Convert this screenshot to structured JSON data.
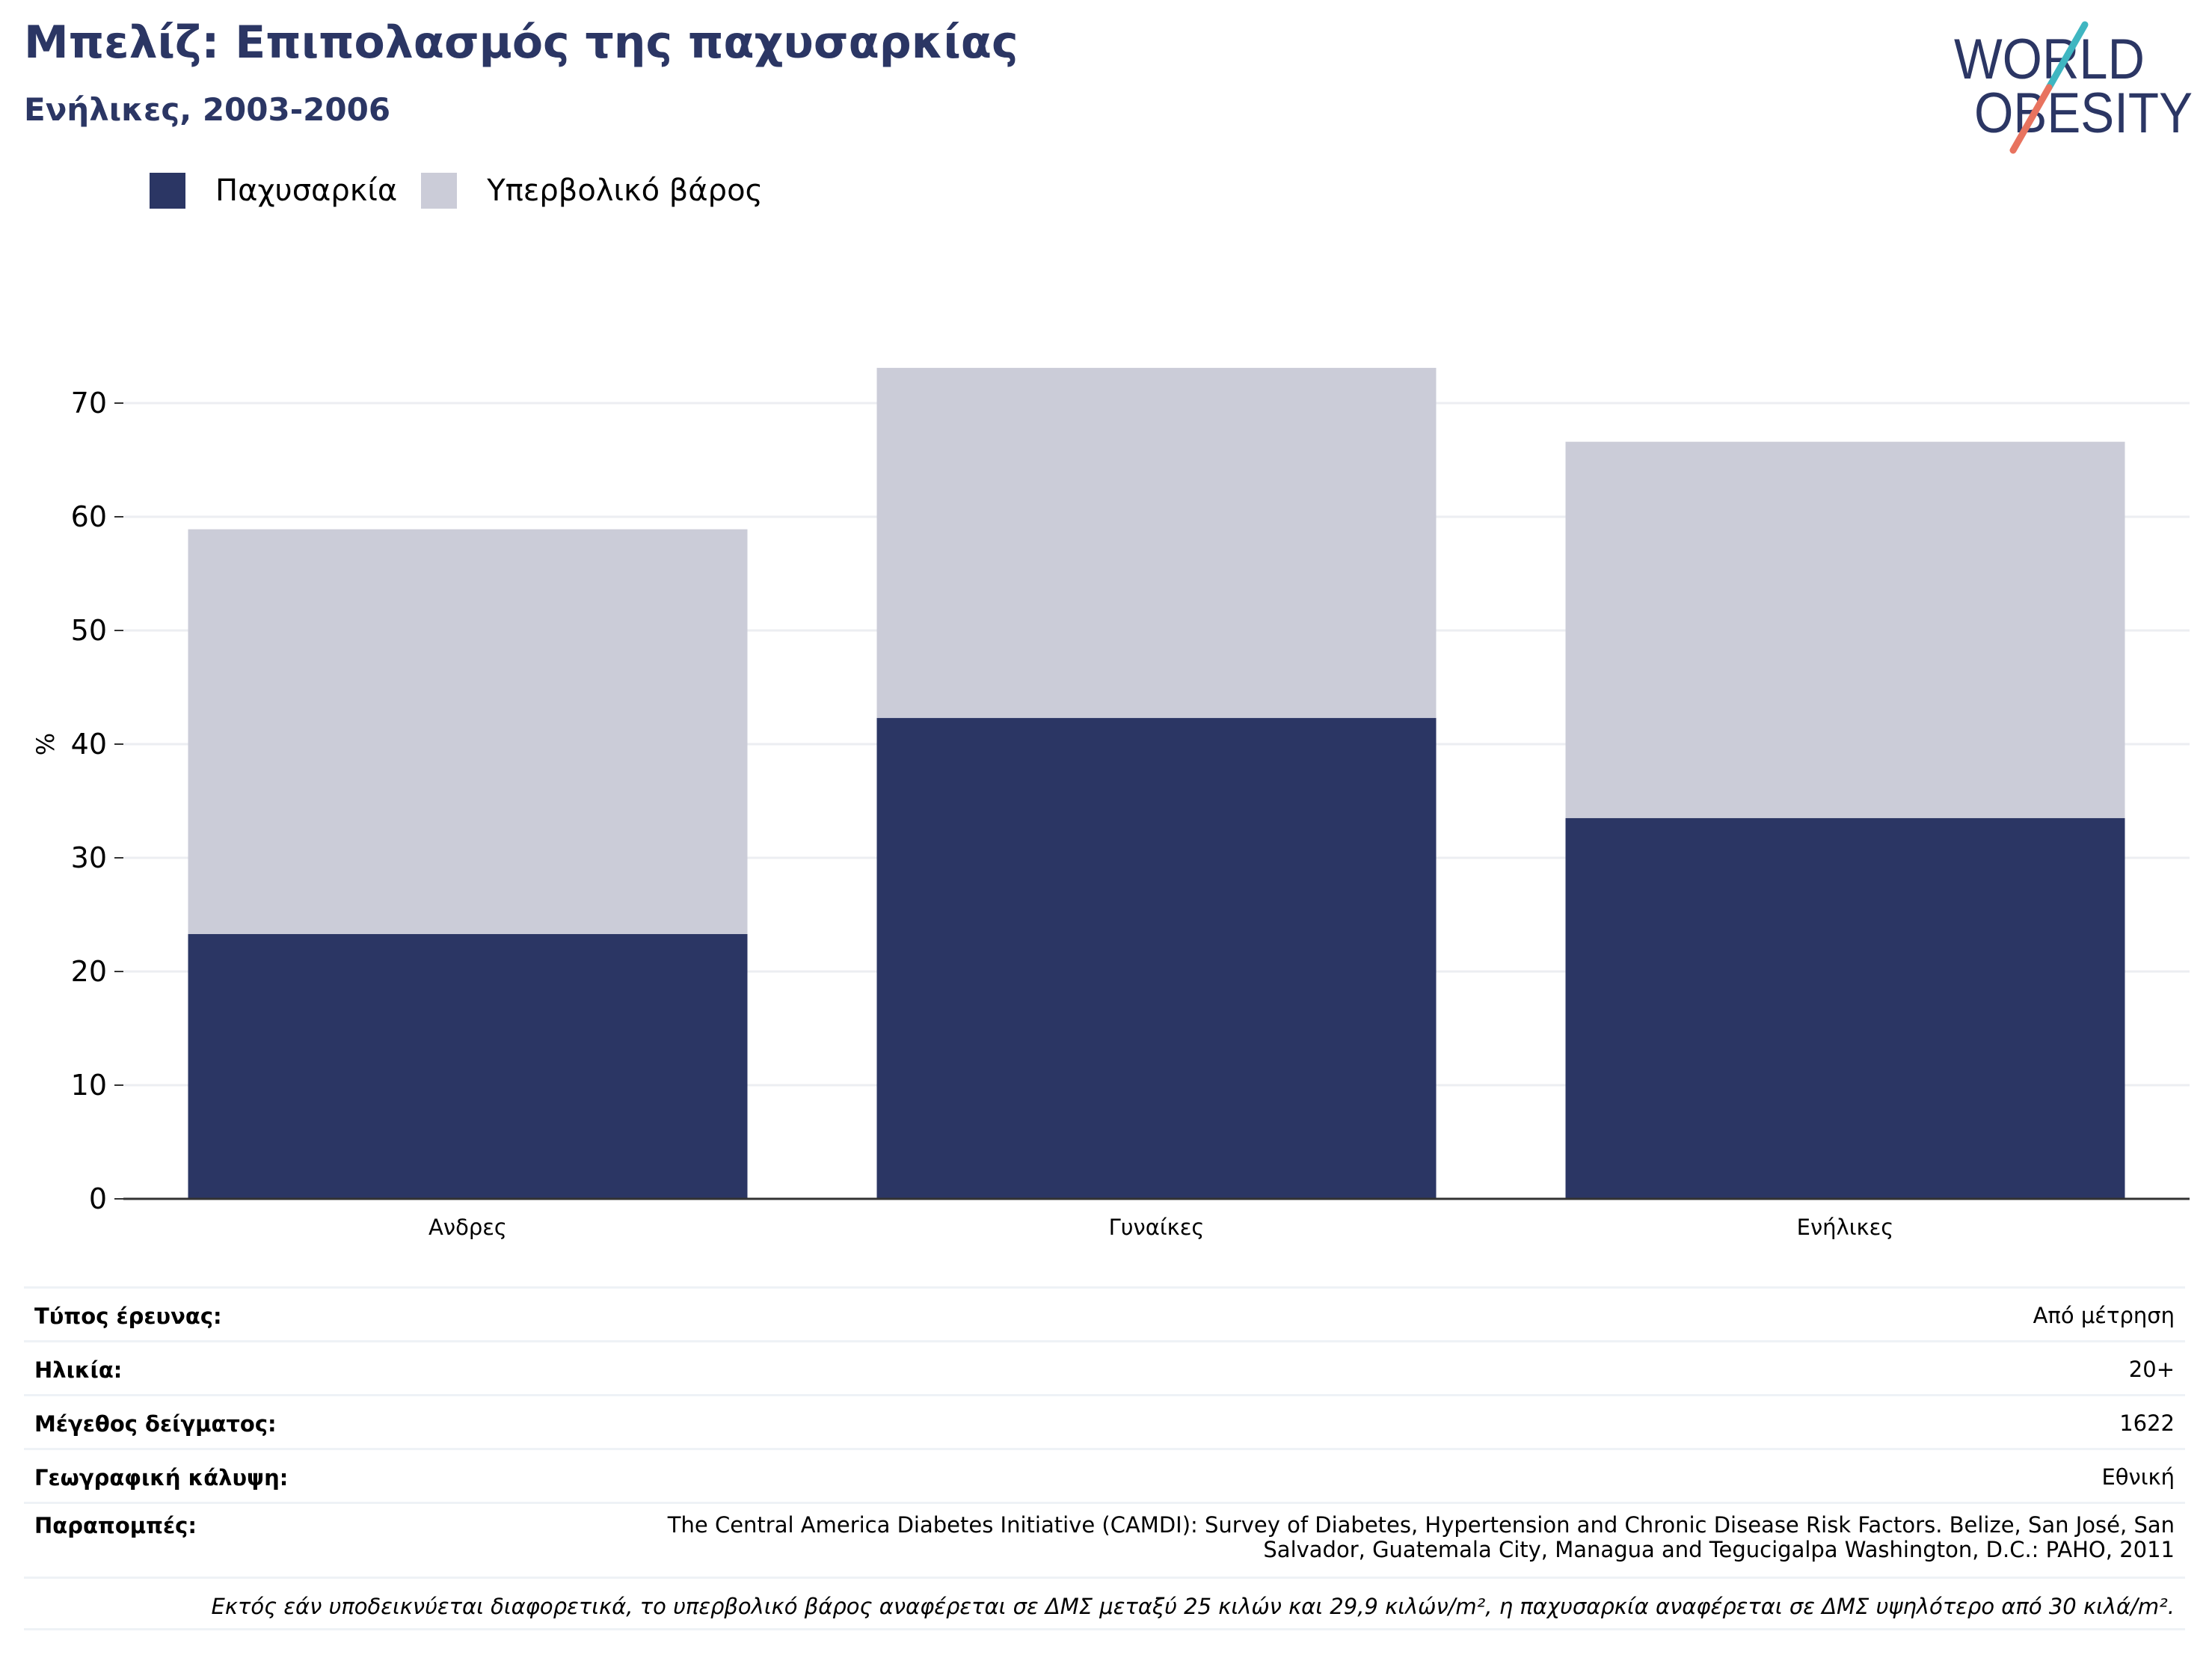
{
  "header": {
    "title": "Μπελίζ: Επιπολασμός της παχυσαρκίας",
    "subtitle": "Ενήλικες, 2003-2006"
  },
  "logo": {
    "line1": "WORLD",
    "line2": "OBESITY",
    "colors": {
      "text": "#2b3664",
      "slash_teal": "#3fb6c1",
      "slash_coral": "#e8735f"
    }
  },
  "colors": {
    "obesity": "#2b3664",
    "overweight": "#cbccd8",
    "grid": "#eceef2",
    "axis": "#333333"
  },
  "chart_data": {
    "type": "bar",
    "stacked": true,
    "categories": [
      "Ανδρες",
      "Γυναίκες",
      "Ενήλικες"
    ],
    "series": [
      {
        "name": "Παχυσαρκία",
        "values": [
          23.3,
          42.3,
          33.5
        ],
        "color": "#2b3664"
      },
      {
        "name": "Υπερβολικό βάρος",
        "values": [
          35.6,
          30.8,
          33.1
        ],
        "color": "#cbccd8"
      }
    ],
    "ylabel": "%",
    "xlabel": "",
    "ylim": [
      0,
      75
    ],
    "yticks": [
      0,
      10,
      20,
      30,
      40,
      50,
      60,
      70
    ],
    "grid": true,
    "legend": "top-left"
  },
  "meta": {
    "rows": [
      {
        "label": "Τύπος έρευνας:",
        "value": "Από μέτρηση"
      },
      {
        "label": "Ηλικία:",
        "value": "20+"
      },
      {
        "label": "Μέγεθος δείγματος:",
        "value": "1622"
      },
      {
        "label": "Γεωγραφική κάλυψη:",
        "value": "Εθνική"
      }
    ],
    "references": {
      "label": "Παραπομπές:",
      "line1": "The Central America Diabetes Initiative (CAMDI): Survey of Diabetes, Hypertension and Chronic Disease Risk Factors. Belize, San José, San",
      "line2": "Salvador, Guatemala City, Managua and Tegucigalpa Washington, D.C.: PAHO, 2011"
    },
    "note": "Εκτός εάν υποδεικνύεται διαφορετικά, το υπερβολικό βάρος αναφέρεται σε ΔΜΣ μεταξύ 25 κιλών και 29,9 κιλών/m², η παχυσαρκία αναφέρεται σε ΔΜΣ υψηλότερο από 30 κιλά/m²."
  }
}
